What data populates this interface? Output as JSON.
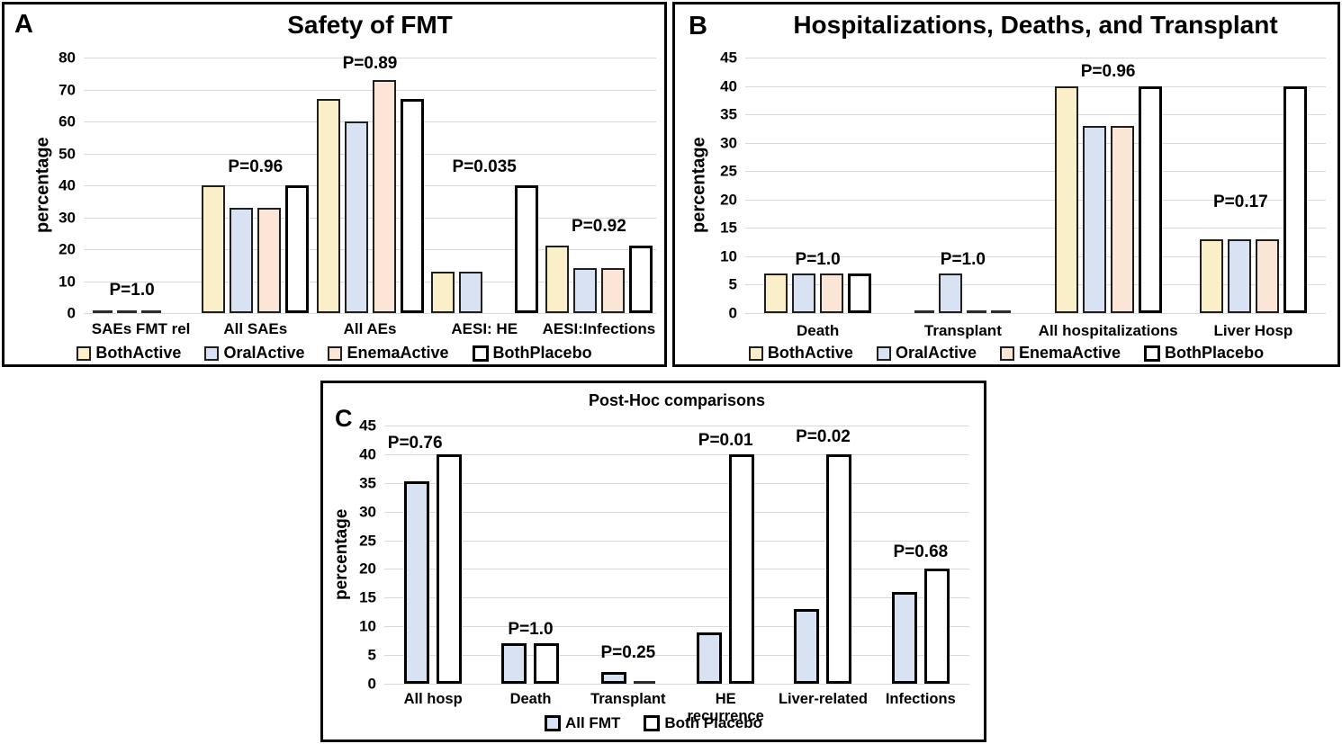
{
  "colors": {
    "grid": "#D9D9D9",
    "panel_border": "#000000",
    "both_active": "#FBEFC9",
    "oral_active": "#D9E2F3",
    "enema_active": "#FBE5D6",
    "both_placebo": "#FFFFFF"
  },
  "chart_data": [
    {
      "type": "bar",
      "panel_label": "A",
      "title": "Safety of FMT",
      "ylabel": "percentage",
      "xlabel": "",
      "ylim": [
        0,
        80
      ],
      "yticks": [
        0,
        10,
        20,
        30,
        40,
        50,
        60,
        70,
        80
      ],
      "grid": true,
      "legend_position": "bottom",
      "series": [
        {
          "name": "BothActive",
          "color": "#FBEFC9",
          "border": "#1f1f1f",
          "border_px": 2
        },
        {
          "name": "OralActive",
          "color": "#D9E2F3",
          "border": "#1f1f1f",
          "border_px": 2
        },
        {
          "name": "EnemaActive",
          "color": "#FBE5D6",
          "border": "#1f1f1f",
          "border_px": 2
        },
        {
          "name": "BothPlacebo",
          "color": "#FFFFFF",
          "border": "#000000",
          "border_px": 3
        }
      ],
      "categories": [
        "SAEs FMT rel",
        "All SAEs",
        "All AEs",
        "AESI: HE",
        "AESI:Infections"
      ],
      "values": [
        [
          0,
          0,
          0,
          null
        ],
        [
          40,
          33,
          33,
          40
        ],
        [
          67,
          60,
          73,
          67
        ],
        [
          13,
          13,
          null,
          40
        ],
        [
          21,
          14,
          14,
          21
        ]
      ],
      "annotations": [
        {
          "text": "P=1.0",
          "group": 0,
          "y": 4.5,
          "dx": -10
        },
        {
          "text": "P=0.96",
          "group": 1,
          "y": 43,
          "dx": 0
        },
        {
          "text": "P=0.89",
          "group": 2,
          "y": 75.5,
          "dx": 0
        },
        {
          "text": "P=0.035",
          "group": 3,
          "y": 43,
          "dx": 0
        },
        {
          "text": "P=0.92",
          "group": 4,
          "y": 24.5,
          "dx": 0
        }
      ]
    },
    {
      "type": "bar",
      "panel_label": "B",
      "title": "Hospitalizations, Deaths, and Transplant",
      "ylabel": "percentage",
      "xlabel": "",
      "ylim": [
        0,
        45
      ],
      "yticks": [
        0,
        5,
        10,
        15,
        20,
        25,
        30,
        35,
        40,
        45
      ],
      "grid": true,
      "legend_position": "bottom",
      "series": [
        {
          "name": "BothActive",
          "color": "#FBEFC9",
          "border": "#1f1f1f",
          "border_px": 2
        },
        {
          "name": "OralActive",
          "color": "#D9E2F3",
          "border": "#1f1f1f",
          "border_px": 2
        },
        {
          "name": "EnemaActive",
          "color": "#FBE5D6",
          "border": "#1f1f1f",
          "border_px": 2
        },
        {
          "name": "BothPlacebo",
          "color": "#FFFFFF",
          "border": "#000000",
          "border_px": 3
        }
      ],
      "categories": [
        "Death",
        "Transplant",
        "All hospitalizations",
        "Liver Hosp"
      ],
      "values": [
        [
          7,
          7,
          7,
          7
        ],
        [
          0,
          7,
          0,
          0
        ],
        [
          40,
          33,
          33,
          40
        ],
        [
          13,
          13,
          13,
          40
        ]
      ],
      "annotations": [
        {
          "text": "P=1.0",
          "group": 0,
          "y": 8,
          "dx": 0
        },
        {
          "text": "P=1.0",
          "group": 1,
          "y": 8,
          "dx": 0
        },
        {
          "text": "P=0.96",
          "group": 2,
          "y": 41,
          "dx": 0
        },
        {
          "text": "P=0.17",
          "group": 3,
          "y": 18,
          "dx": -14
        }
      ]
    },
    {
      "type": "bar",
      "panel_label": "C",
      "title": "Post-Hoc comparisons",
      "ylabel": "percentage",
      "xlabel": "",
      "ylim": [
        0,
        45
      ],
      "yticks": [
        0,
        5,
        10,
        15,
        20,
        25,
        30,
        35,
        40,
        45
      ],
      "grid": true,
      "legend_position": "bottom",
      "series": [
        {
          "name": "All FMT",
          "color": "#D9E2F3",
          "border": "#000000",
          "border_px": 3
        },
        {
          "name": "Both Placebo",
          "color": "#FFFFFF",
          "border": "#000000",
          "border_px": 3
        }
      ],
      "categories": [
        "All hosp",
        "Death",
        "Transplant",
        "HE recurrence",
        "Liver-related",
        "Infections"
      ],
      "values": [
        [
          35.3,
          40
        ],
        [
          7,
          7
        ],
        [
          2,
          0
        ],
        [
          9,
          40
        ],
        [
          13,
          40
        ],
        [
          16,
          20
        ]
      ],
      "annotations": [
        {
          "text": "P=0.76",
          "group": 0,
          "y": 40.5,
          "dx": -20
        },
        {
          "text": "P=1.0",
          "group": 1,
          "y": 8,
          "dx": 0
        },
        {
          "text": "P=0.25",
          "group": 2,
          "y": 4,
          "dx": 0
        },
        {
          "text": "P=0.01",
          "group": 3,
          "y": 41,
          "dx": 0
        },
        {
          "text": "P=0.02",
          "group": 4,
          "y": 41.5,
          "dx": 0
        },
        {
          "text": "P=0.68",
          "group": 5,
          "y": 21.5,
          "dx": 0
        }
      ]
    }
  ]
}
